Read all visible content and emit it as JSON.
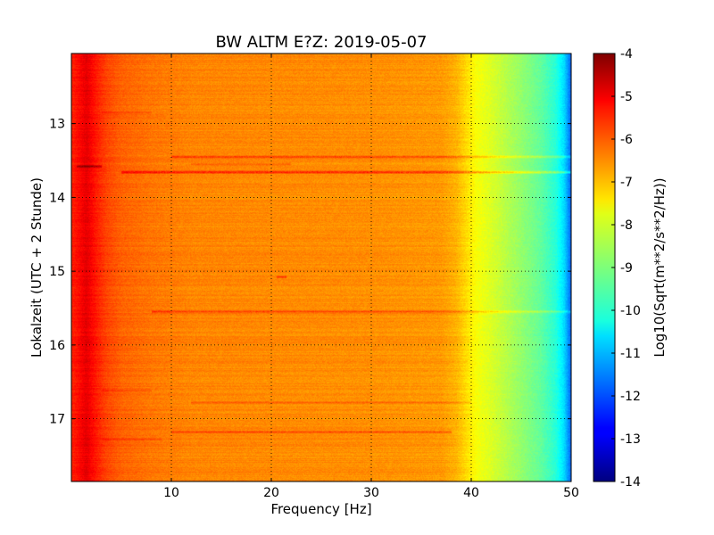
{
  "chart_data": {
    "type": "heatmap",
    "title": "BW ALTM E?Z: 2019-05-07",
    "xlabel": "Frequency [Hz]",
    "ylabel": "Lokalzeit (UTC + 2 Stunde)",
    "colorbar_label": "Log10(Sqrt(m**2/s**2/Hz))",
    "xlim": [
      0,
      50
    ],
    "ylim": [
      12.05,
      17.85
    ],
    "y_inverted": true,
    "x_ticks": [
      "10",
      "20",
      "30",
      "40",
      "50"
    ],
    "y_ticks": [
      "13",
      "14",
      "15",
      "16",
      "17"
    ],
    "colorbar_range": [
      -14,
      -4
    ],
    "colorbar_ticks": [
      "-4",
      "-5",
      "-6",
      "-7",
      "-8",
      "-9",
      "-10",
      "-11",
      "-12",
      "-13",
      "-14"
    ],
    "colormap": "jet",
    "grid": true,
    "grid_style": "dotted",
    "spectrum_profile": {
      "frequency_hz": [
        0,
        0.8,
        1.5,
        2.5,
        3.5,
        5,
        8,
        12,
        20,
        30,
        37,
        38.5,
        39.5,
        40.5,
        42,
        45,
        47,
        48.5,
        49.3,
        49.7,
        50
      ],
      "log10_amplitude": [
        -5.6,
        -5.3,
        -5.0,
        -5.5,
        -5.9,
        -6.2,
        -6.4,
        -6.55,
        -6.6,
        -6.65,
        -6.75,
        -7.0,
        -7.4,
        -7.8,
        -8.1,
        -8.8,
        -9.3,
        -9.9,
        -10.6,
        -11.3,
        -11.8
      ]
    },
    "horizontal_bands": [
      {
        "time": 13.45,
        "f_min": 10,
        "f_max": 50,
        "delta": 0.9
      },
      {
        "time": 13.58,
        "f_min": 0.5,
        "f_max": 3,
        "delta": 1.2
      },
      {
        "time": 13.66,
        "f_min": 5,
        "f_max": 50,
        "delta": 1.3
      },
      {
        "time": 13.55,
        "f_min": 12,
        "f_max": 22,
        "delta": 0.5
      },
      {
        "time": 15.55,
        "f_min": 8,
        "f_max": 50,
        "delta": 0.8
      },
      {
        "time": 16.62,
        "f_min": 3,
        "f_max": 8,
        "delta": 0.4
      },
      {
        "time": 16.78,
        "f_min": 12,
        "f_max": 40,
        "delta": 0.5
      },
      {
        "time": 17.18,
        "f_min": 10,
        "f_max": 38,
        "delta": 0.8
      },
      {
        "time": 17.28,
        "f_min": 3,
        "f_max": 9,
        "delta": 0.4
      },
      {
        "time": 12.85,
        "f_min": 3,
        "f_max": 8,
        "delta": 0.4
      },
      {
        "time": 15.08,
        "f_min": 20.5,
        "f_max": 21.5,
        "delta": 0.9
      }
    ]
  }
}
